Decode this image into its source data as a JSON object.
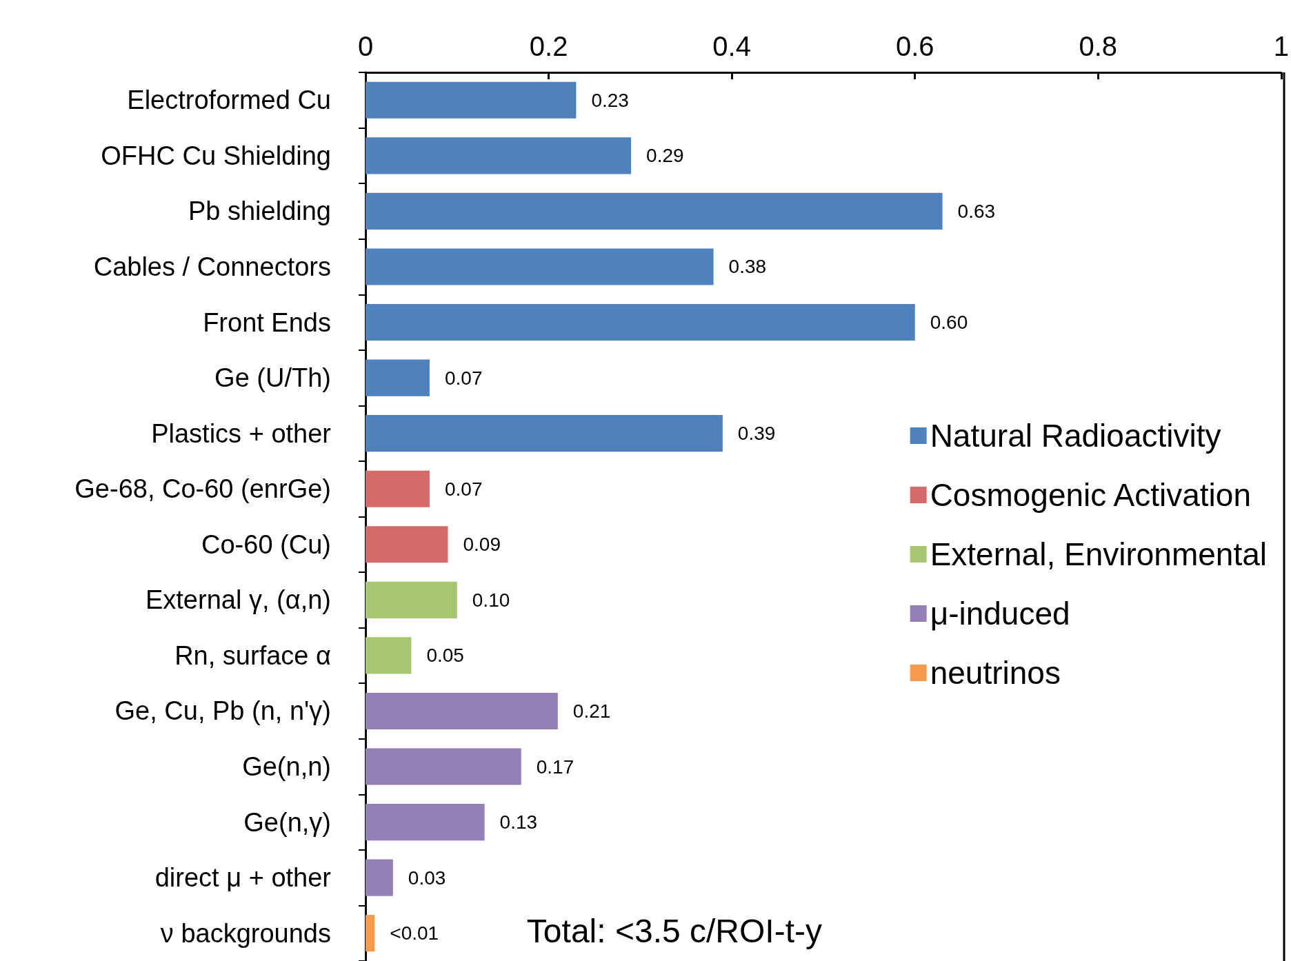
{
  "chart_data": {
    "type": "bar",
    "orientation": "horizontal",
    "stacked": true,
    "categories": [
      "Electroformed Cu",
      "OFHC Cu Shielding",
      "Pb shielding",
      "Cables / Connectors",
      "Front Ends",
      "Ge (U/Th)",
      "Plastics + other",
      "Ge-68, Co-60 (enrGe)",
      "Co-60 (Cu)",
      "External γ, (α,n)",
      "Rn, surface α",
      "Ge, Cu, Pb (n, n'γ)",
      "Ge(n,n)",
      "Ge(n,γ)",
      "direct μ + other",
      "ν backgrounds"
    ],
    "series": [
      {
        "name": "Natural Radioactivity",
        "color": "#4f81bd",
        "values": [
          0.23,
          0.29,
          0.63,
          0.38,
          0.6,
          0.07,
          0.39,
          null,
          null,
          null,
          null,
          null,
          null,
          null,
          null,
          null
        ],
        "value_labels": [
          "0.23",
          "0.29",
          "0.63",
          "0.38",
          "0.60",
          "0.07",
          "0.39",
          null,
          null,
          null,
          null,
          null,
          null,
          null,
          null,
          null
        ]
      },
      {
        "name": "Cosmogenic Activation",
        "color": "#d46b69",
        "values": [
          null,
          null,
          null,
          null,
          null,
          null,
          null,
          0.07,
          0.09,
          null,
          null,
          null,
          null,
          null,
          null,
          null
        ],
        "value_labels": [
          null,
          null,
          null,
          null,
          null,
          null,
          null,
          "0.07",
          "0.09",
          null,
          null,
          null,
          null,
          null,
          null,
          null
        ]
      },
      {
        "name": "External, Environmental",
        "color": "#a6c672",
        "values": [
          null,
          null,
          null,
          null,
          null,
          null,
          null,
          null,
          null,
          0.1,
          0.05,
          null,
          null,
          null,
          null,
          null
        ],
        "value_labels": [
          null,
          null,
          null,
          null,
          null,
          null,
          null,
          null,
          null,
          "0.10",
          "0.05",
          null,
          null,
          null,
          null,
          null
        ]
      },
      {
        "name": "μ-induced",
        "color": "#9580b5",
        "values": [
          null,
          null,
          null,
          null,
          null,
          null,
          null,
          null,
          null,
          null,
          null,
          0.21,
          0.17,
          0.13,
          0.03,
          null
        ],
        "value_labels": [
          null,
          null,
          null,
          null,
          null,
          null,
          null,
          null,
          null,
          null,
          null,
          "0.21",
          "0.17",
          "0.13",
          "0.03",
          null
        ]
      },
      {
        "name": "neutrinos",
        "color": "#f59a4a",
        "values": [
          null,
          null,
          null,
          null,
          null,
          null,
          null,
          null,
          null,
          null,
          null,
          null,
          null,
          null,
          null,
          0.01
        ],
        "value_labels": [
          null,
          null,
          null,
          null,
          null,
          null,
          null,
          null,
          null,
          null,
          null,
          null,
          null,
          null,
          null,
          "<0.01"
        ]
      }
    ],
    "xlim": [
      0,
      1
    ],
    "xticks": [
      0,
      0.2,
      0.4,
      0.6,
      0.8,
      1
    ],
    "legend": "bottom right",
    "annotations": [
      "Total: <3.5 c/ROI-t-y"
    ]
  }
}
